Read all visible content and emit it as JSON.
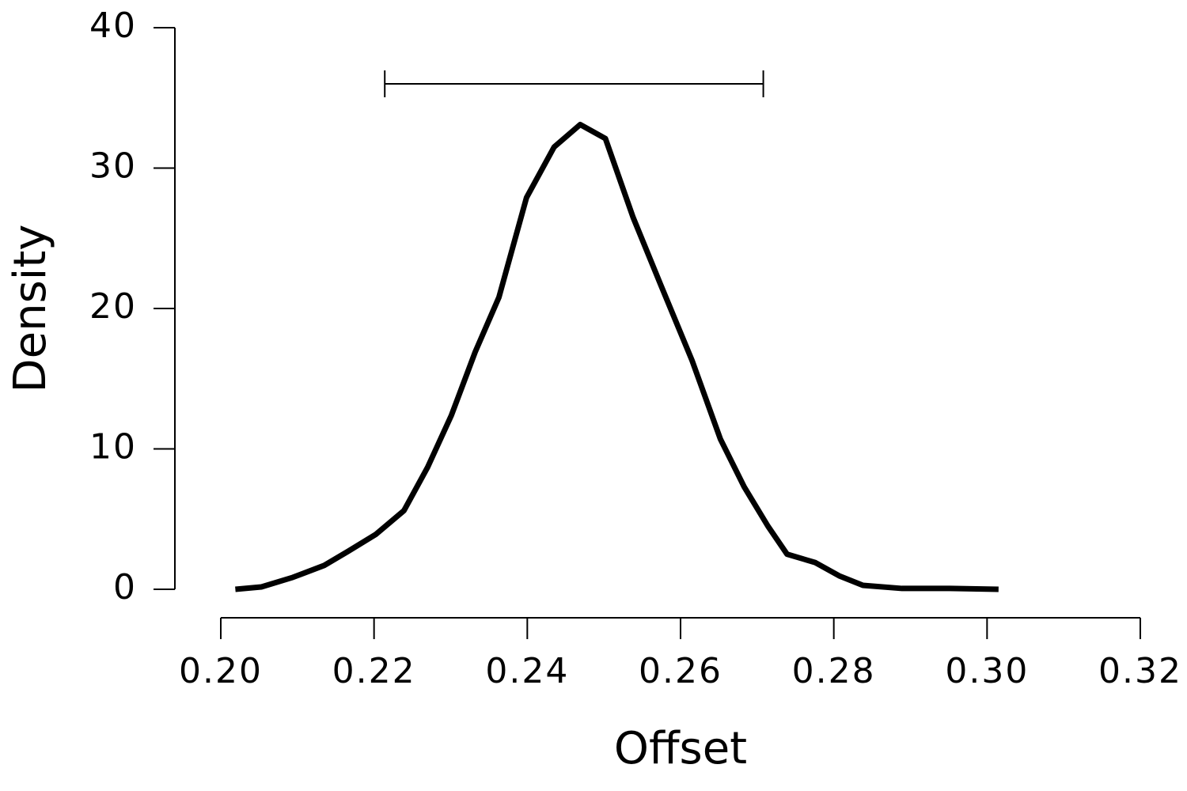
{
  "chart_data": {
    "type": "line",
    "x_label": "Offset",
    "y_label": "Density",
    "x": [
      0.2019,
      0.2053,
      0.2094,
      0.2135,
      0.2166,
      0.2202,
      0.2239,
      0.227,
      0.2301,
      0.2332,
      0.2363,
      0.2399,
      0.2435,
      0.2469,
      0.2502,
      0.2538,
      0.2574,
      0.2615,
      0.2652,
      0.2683,
      0.2714,
      0.2739,
      0.2776,
      0.2807,
      0.2838,
      0.2889,
      0.2951,
      0.3015
    ],
    "series": [
      {
        "name": "Density",
        "color": "#000000",
        "values": [
          0,
          0.17,
          0.85,
          1.7,
          2.7,
          3.9,
          5.6,
          8.7,
          12.4,
          16.9,
          20.8,
          27.9,
          31.5,
          33.1,
          32.1,
          26.5,
          21.7,
          16.3,
          10.7,
          7.3,
          4.5,
          2.5,
          1.9,
          0.96,
          0.28,
          0.06,
          0.06,
          0
        ]
      }
    ],
    "interval": {
      "low": 0.2214,
      "high": 0.2708,
      "y": 36
    },
    "xlim": [
      0.2,
      0.32
    ],
    "xticks": [
      {
        "value": 0.2,
        "label": "0.20"
      },
      0.22,
      0.24,
      0.26,
      0.28,
      {
        "value": 0.3,
        "label": "0.30"
      },
      0.32
    ],
    "ylim": [
      0,
      40
    ],
    "yticks": [
      0,
      10,
      20,
      30,
      40
    ],
    "grid": false
  }
}
